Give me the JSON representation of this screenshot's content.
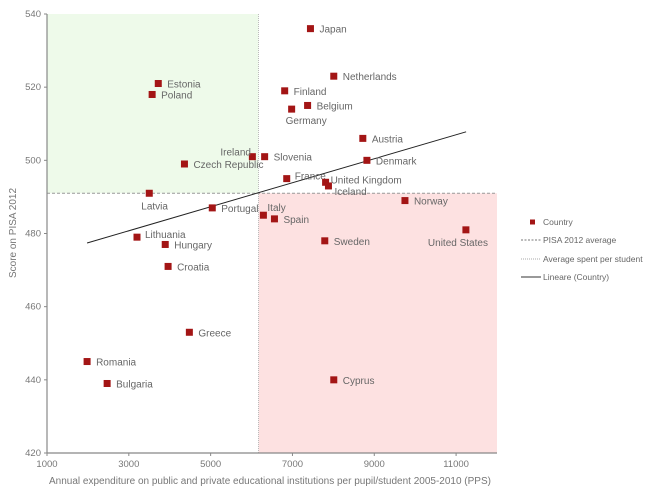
{
  "chart_data": {
    "type": "scatter",
    "title": "",
    "xlabel": "Annual expenditure on public and private educational institutions per pupil/student 2005-2010 (PPS)",
    "ylabel": "Score on PISA 2012",
    "xlim": [
      1000,
      12000
    ],
    "ylim": [
      420,
      540
    ],
    "xticks": [
      1000,
      3000,
      5000,
      7000,
      9000,
      11000
    ],
    "yticks": [
      420,
      440,
      460,
      480,
      500,
      520,
      540
    ],
    "grid": false,
    "legend_position": "right",
    "pisa_average": 491,
    "average_spent_per_student": 6170,
    "colors": {
      "marker": "#a31515",
      "quadrant_high_score_low_spend": "#eefaea",
      "quadrant_low_score_high_spend": "#fde1e1",
      "trend_line": "#222222",
      "reference_line": "#999999"
    },
    "series": [
      {
        "name": "Country",
        "points": [
          {
            "label": "Japan",
            "x": 7440,
            "y": 536
          },
          {
            "label": "Netherlands",
            "x": 8010,
            "y": 523
          },
          {
            "label": "Estonia",
            "x": 3720,
            "y": 521
          },
          {
            "label": "Finland",
            "x": 6810,
            "y": 519
          },
          {
            "label": "Poland",
            "x": 3570,
            "y": 518
          },
          {
            "label": "Belgium",
            "x": 7370,
            "y": 515
          },
          {
            "label": "Germany",
            "x": 6980,
            "y": 514
          },
          {
            "label": "Austria",
            "x": 8720,
            "y": 506
          },
          {
            "label": "Ireland",
            "x": 6020,
            "y": 501
          },
          {
            "label": "Slovenia",
            "x": 6320,
            "y": 501
          },
          {
            "label": "Denmark",
            "x": 8820,
            "y": 500
          },
          {
            "label": "Czech Republic",
            "x": 4360,
            "y": 499
          },
          {
            "label": "France",
            "x": 6860,
            "y": 495
          },
          {
            "label": "United Kingdom",
            "x": 7810,
            "y": 494
          },
          {
            "label": "Iceland",
            "x": 7880,
            "y": 493
          },
          {
            "label": "Latvia",
            "x": 3500,
            "y": 491
          },
          {
            "label": "Norway",
            "x": 9750,
            "y": 489
          },
          {
            "label": "Portugal",
            "x": 5040,
            "y": 487
          },
          {
            "label": "Italy",
            "x": 6290,
            "y": 485
          },
          {
            "label": "Spain",
            "x": 6560,
            "y": 484
          },
          {
            "label": "United States",
            "x": 11240,
            "y": 481
          },
          {
            "label": "Lithuania",
            "x": 3200,
            "y": 479
          },
          {
            "label": "Sweden",
            "x": 7790,
            "y": 478
          },
          {
            "label": "Hungary",
            "x": 3890,
            "y": 477
          },
          {
            "label": "Croatia",
            "x": 3960,
            "y": 471
          },
          {
            "label": "Greece",
            "x": 4480,
            "y": 453
          },
          {
            "label": "Romania",
            "x": 1980,
            "y": 445
          },
          {
            "label": "Cyprus",
            "x": 8010,
            "y": 440
          },
          {
            "label": "Bulgaria",
            "x": 2470,
            "y": 439
          }
        ]
      },
      {
        "name": "Lineare (Country)",
        "type": "line",
        "points": [
          {
            "x": 1980,
            "y": 477.4
          },
          {
            "x": 11245,
            "y": 507.8
          }
        ]
      }
    ],
    "legend": [
      {
        "label": "Country",
        "symbol": "square"
      },
      {
        "label": "PISA 2012 average",
        "symbol": "dashed-line"
      },
      {
        "label": "Average spent per student",
        "symbol": "dotted-line"
      },
      {
        "label": "Lineare (Country)",
        "symbol": "solid-line"
      }
    ]
  }
}
